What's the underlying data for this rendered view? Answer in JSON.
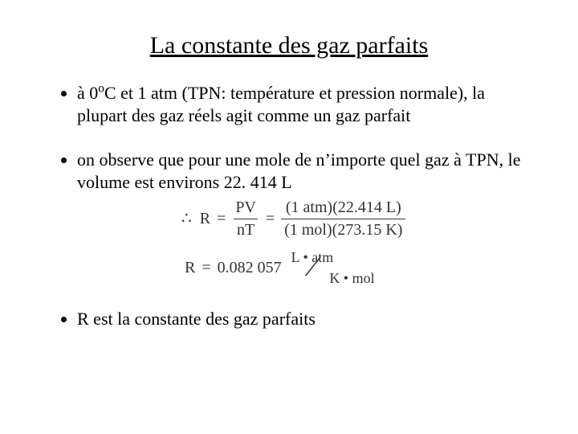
{
  "colors": {
    "background": "#ffffff",
    "text": "#000000",
    "equation": "#333333"
  },
  "typography": {
    "family": "Times New Roman",
    "title_fontsize": 30,
    "body_fontsize": 22,
    "equation_fontsize": 20
  },
  "title": "La constante des gaz parfaits",
  "bullets": {
    "b1_pre": "à 0",
    "b1_sup": "o",
    "b1_post": "C et 1 atm (TPN: température et pression normale), la plupart des gaz réels agit comme un gaz parfait",
    "b2": "on observe que pour une mole de n’importe quel gaz à TPN, le volume est environs 22. 414 L",
    "b3": "R est la constante des gaz parfaits"
  },
  "equation": {
    "therefore": "∴",
    "lhs": "R",
    "eq": "=",
    "frac1_num": "PV",
    "frac1_den": "nT",
    "frac2_num": "(1 atm)(22.414 L)",
    "frac2_den": "(1 mol)(273.15 K)",
    "result_lhs": "R",
    "result_val": "0.082 057",
    "unit_top": "L • atm",
    "unit_slash": "⁄",
    "unit_bot": "K • mol"
  }
}
